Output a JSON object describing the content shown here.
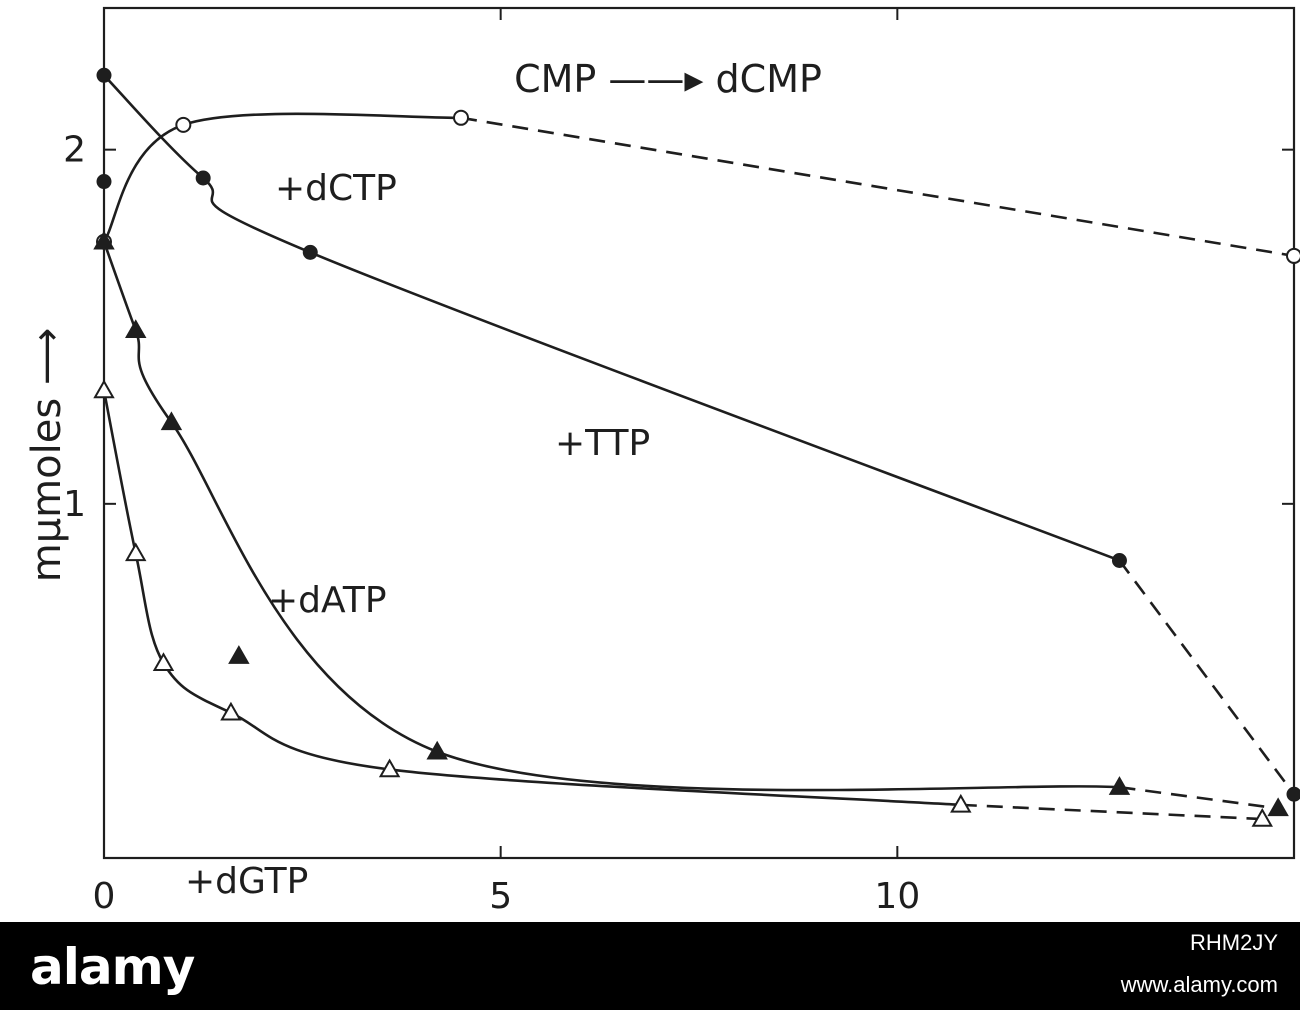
{
  "chart_data": {
    "type": "line",
    "title": "",
    "annotation": "CMP ——▸ dCMP",
    "xlabel": "",
    "ylabel": "mμmoles ⟶",
    "xlim": [
      0,
      15
    ],
    "ylim": [
      0,
      2.4
    ],
    "x_ticks": [
      0,
      5,
      10
    ],
    "y_ticks": [
      1,
      2
    ],
    "grid": false,
    "series": [
      {
        "name": "+dCTP",
        "marker": "open-circle",
        "points": [
          [
            0,
            1.74
          ],
          [
            1,
            2.07
          ],
          [
            4.5,
            2.09
          ],
          [
            15,
            1.7
          ]
        ],
        "solid_until_x": 4.5
      },
      {
        "name": "+TTP",
        "marker": "filled-circle",
        "points": [
          [
            0,
            2.21
          ],
          [
            1.25,
            1.92
          ],
          [
            2.6,
            1.71
          ],
          [
            12.8,
            0.84
          ],
          [
            15,
            0.18
          ]
        ],
        "solid_until_x": 12.8,
        "extra_points": [
          [
            0,
            1.91
          ]
        ]
      },
      {
        "name": "+dATP",
        "marker": "filled-triangle",
        "points": [
          [
            0,
            1.74
          ],
          [
            0.4,
            1.49
          ],
          [
            0.85,
            1.23
          ],
          [
            4.2,
            0.3
          ],
          [
            12.8,
            0.2
          ],
          [
            14.8,
            0.14
          ]
        ],
        "solid_until_x": 12.8,
        "extra_points": [
          [
            1.7,
            0.57
          ]
        ]
      },
      {
        "name": "+dGTP",
        "marker": "open-triangle",
        "points": [
          [
            0,
            1.32
          ],
          [
            0.4,
            0.86
          ],
          [
            0.75,
            0.55
          ],
          [
            1.6,
            0.41
          ],
          [
            3.6,
            0.25
          ],
          [
            10.8,
            0.15
          ],
          [
            14.6,
            0.11
          ]
        ],
        "solid_until_x": 10.8
      }
    ]
  },
  "watermark": {
    "logo": "alamy",
    "code": "RHM2JY",
    "url": "www.alamy.com"
  }
}
